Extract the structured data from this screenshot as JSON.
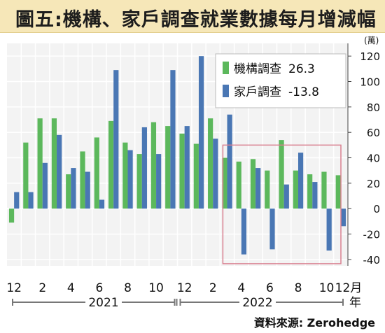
{
  "chart_data": {
    "type": "bar",
    "title": "圖五:機構、家戶調查就業數據每月增減幅",
    "unit_label": "(萬)",
    "x_tick_labels": [
      "12",
      "2",
      "4",
      "6",
      "8",
      "10",
      "12",
      "2",
      "4",
      "6",
      "8",
      "10",
      "12月"
    ],
    "year_labels": [
      "2021",
      "2022"
    ],
    "year_suffix": "年",
    "ylim": [
      -45,
      130
    ],
    "y_ticks": [
      -40,
      -20,
      0,
      20,
      40,
      60,
      80,
      100,
      120
    ],
    "legend_position": "top-right",
    "grid": true,
    "series": [
      {
        "name": "機構調查",
        "legend_value": "26.3",
        "color": "#5cb85c",
        "values": [
          -11,
          52,
          71,
          71,
          27,
          45,
          56,
          69,
          52,
          43,
          68,
          65,
          59,
          51,
          71,
          40,
          37,
          39,
          30,
          54,
          30,
          27,
          29,
          26.3
        ]
      },
      {
        "name": "家戶調查",
        "legend_value": "-13.8",
        "color": "#4a77b4",
        "values": [
          13,
          13,
          36,
          58,
          32,
          29,
          7,
          109,
          46,
          64,
          43,
          109,
          65,
          120,
          55,
          74,
          -36,
          32,
          -32,
          19,
          44,
          21,
          -33,
          -13.8
        ]
      }
    ],
    "highlight_box_color": "#d98090"
  },
  "source": "資料來源: Zerohedge"
}
